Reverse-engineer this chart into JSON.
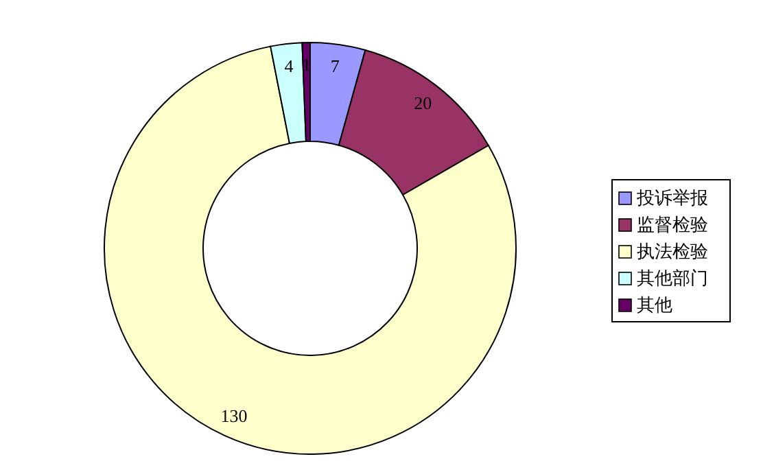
{
  "chart_data": {
    "type": "donut",
    "categories": [
      "投诉举报",
      "监督检验",
      "执法检验",
      "其他部门",
      "其他"
    ],
    "values": [
      7,
      20,
      130,
      4,
      1
    ],
    "colors": [
      "#9999ff",
      "#993366",
      "#ffffcc",
      "#ccffff",
      "#660066"
    ],
    "data_labels": true,
    "legend": "right"
  }
}
